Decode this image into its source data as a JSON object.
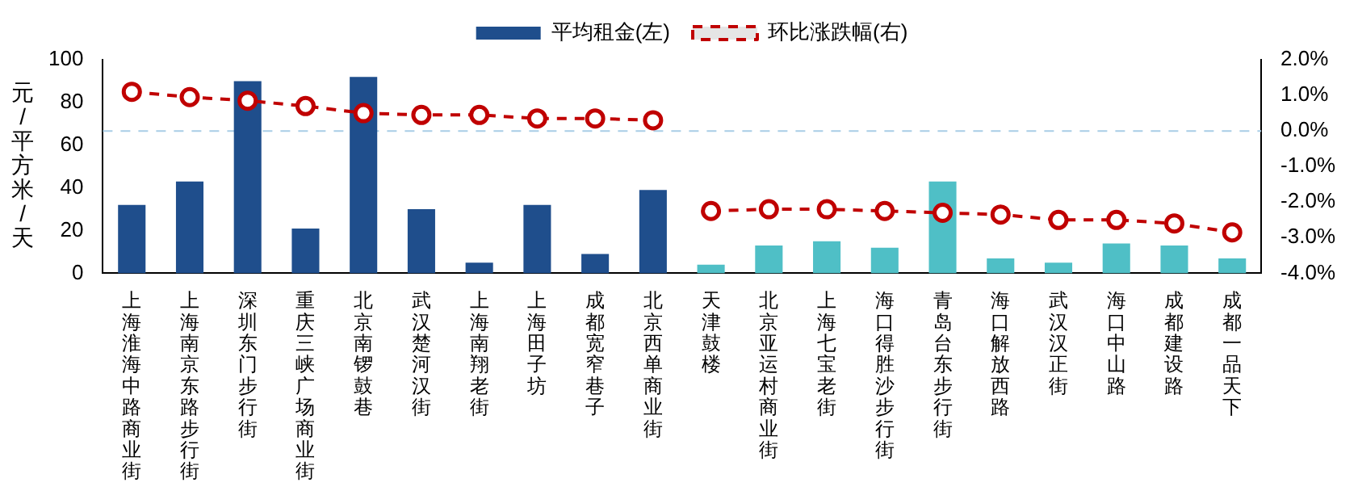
{
  "chart_data": {
    "type": "bar",
    "ylabel": "元/平方米/天",
    "categories": [
      "上海淮海中路商业街",
      "上海南京东路步行街",
      "深圳东门步行街",
      "重庆三峡广场商业街",
      "北京南锣鼓巷",
      "武汉楚河汉街",
      "上海南翔老街",
      "上海田子坊",
      "成都宽窄巷子",
      "北京西单商业街",
      "天津鼓楼",
      "北京亚运村商业街",
      "上海七宝老街",
      "海口得胜沙步行街",
      "青岛台东步行街",
      "海口解放西路",
      "武汉汉正街",
      "海口中山路",
      "成都建设路",
      "成都一品天下"
    ],
    "series": [
      {
        "name": "平均租金(左)",
        "color": "#1f4e8c",
        "colors": [
          "#1f4e8c",
          "#1f4e8c",
          "#1f4e8c",
          "#1f4e8c",
          "#1f4e8c",
          "#1f4e8c",
          "#1f4e8c",
          "#1f4e8c",
          "#1f4e8c",
          "#1f4e8c",
          "#4fbfc6",
          "#4fbfc6",
          "#4fbfc6",
          "#4fbfc6",
          "#4fbfc6",
          "#4fbfc6",
          "#4fbfc6",
          "#4fbfc6",
          "#4fbfc6",
          "#4fbfc6"
        ],
        "values": [
          32,
          43,
          90,
          21,
          92,
          30,
          5,
          32,
          9,
          39,
          4,
          13,
          15,
          12,
          43,
          7,
          5,
          14,
          13,
          7
        ]
      },
      {
        "name": "环比涨跌幅(右)",
        "type": "line",
        "axis": "y2",
        "color": "#c00000",
        "marker": "circle",
        "line_style": "dashed",
        "values": [
          1.1,
          0.95,
          0.85,
          0.7,
          0.5,
          0.45,
          0.45,
          0.35,
          0.35,
          0.3,
          null,
          null,
          null,
          null,
          null,
          null,
          null,
          null,
          null,
          null
        ]
      },
      {
        "type": "line",
        "axis": "y2",
        "color": "#c00000",
        "marker": "circle",
        "line_style": "dashed",
        "values": [
          null,
          null,
          null,
          null,
          null,
          null,
          null,
          null,
          null,
          null,
          -2.25,
          -2.2,
          -2.2,
          -2.25,
          -2.3,
          -2.35,
          -2.5,
          -2.5,
          -2.6,
          -2.85
        ]
      }
    ],
    "ylim": [
      0,
      100
    ],
    "yticks": [
      0,
      20,
      40,
      60,
      80,
      100
    ],
    "y2lim": [
      -4,
      2
    ],
    "y2ticks": [
      {
        "value": -4,
        "label": "-4.0%"
      },
      {
        "value": -3,
        "label": "-3.0%"
      },
      {
        "value": -2,
        "label": "-2.0%"
      },
      {
        "value": -1,
        "label": "-1.0%"
      },
      {
        "value": 0,
        "label": "0.0%"
      },
      {
        "value": 1,
        "label": "1.0%"
      },
      {
        "value": 2,
        "label": "2.0%"
      }
    ],
    "ref_lines": [
      {
        "axis": "y2",
        "value": 0,
        "color": "#a9cde6",
        "line_style": "dashed"
      }
    ],
    "grid": false,
    "legend": "top"
  }
}
